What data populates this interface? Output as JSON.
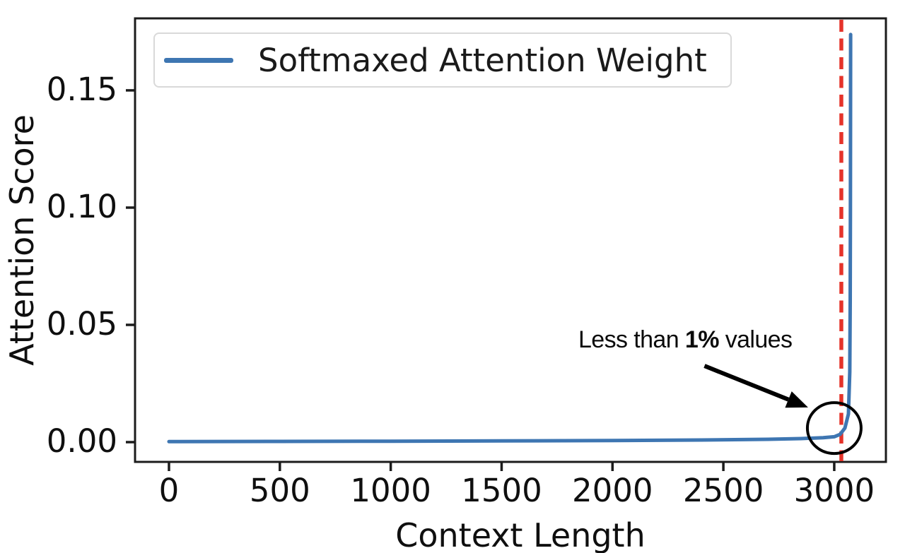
{
  "figure": {
    "background": "#ffffff"
  },
  "chart_data": {
    "type": "line",
    "title": "",
    "xlabel": "Context Length",
    "ylabel": "Attention Score",
    "grid": false,
    "xlim": [
      -153,
      3233
    ],
    "ylim": [
      -0.00843,
      0.1807
    ],
    "x_tick_values": [
      0,
      500,
      1000,
      1500,
      2000,
      2500,
      3000
    ],
    "x_tick_labels": [
      "0",
      "500",
      "1000",
      "1500",
      "2000",
      "2500",
      "3000"
    ],
    "y_tick_values": [
      0.0,
      0.05,
      0.1,
      0.15
    ],
    "y_tick_labels": [
      "0.00",
      "0.05",
      "0.10",
      "0.15"
    ],
    "axis_color": "#1c1c1c",
    "legend": {
      "position": "upper-left",
      "entries": [
        {
          "label": "Softmaxed Attention Weight",
          "color": "#3E76B2"
        }
      ]
    },
    "series": [
      {
        "name": "Softmaxed Attention Weight",
        "color": "#3E76B2",
        "line_width": 5,
        "points": [
          [
            0,
            0.0002
          ],
          [
            500,
            0.0003
          ],
          [
            1000,
            0.0004
          ],
          [
            1500,
            0.0005
          ],
          [
            2000,
            0.0007
          ],
          [
            2400,
            0.0009
          ],
          [
            2700,
            0.0012
          ],
          [
            2850,
            0.0015
          ],
          [
            2950,
            0.0019
          ],
          [
            3000,
            0.0023
          ],
          [
            3026,
            0.0033
          ],
          [
            3048,
            0.006
          ],
          [
            3064,
            0.012
          ],
          [
            3070,
            0.03
          ],
          [
            3072,
            0.06
          ],
          [
            3073,
            0.1
          ],
          [
            3074,
            0.1738
          ]
        ]
      }
    ],
    "vline": {
      "x": 3032,
      "color": "#E5332A",
      "style": "dashed",
      "width": 5.5
    },
    "annotation": {
      "prefix": "Less than ",
      "bold": "1%",
      "suffix": " values",
      "color": "#000000",
      "circle_center": [
        3000,
        0.006
      ],
      "circle_radius_px": [
        38,
        36
      ],
      "arrow_from": [
        2415,
        0.0325
      ],
      "arrow_to": [
        2882,
        0.0148
      ]
    }
  }
}
